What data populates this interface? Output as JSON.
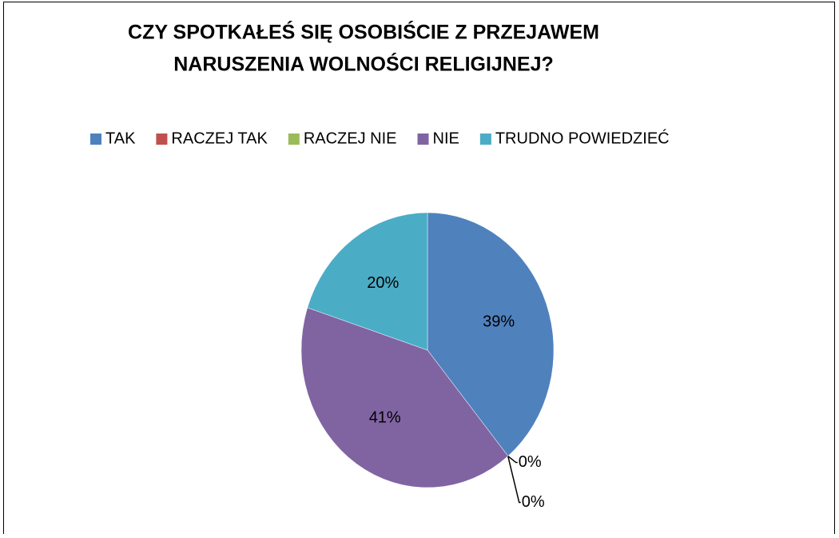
{
  "chart_data": {
    "type": "pie",
    "title": [
      "CZY SPOTKAŁEŚ SIĘ OSOBIŚCIE Z PRZEJAWEM",
      "NARUSZENIA WOLNOŚCI RELIGIJNEJ?"
    ],
    "categories": [
      "TAK",
      "RACZEJ TAK",
      "RACZEJ NIE",
      "NIE",
      "TRUDNO POWIEDZIEĆ"
    ],
    "values": [
      39,
      0,
      0,
      41,
      20
    ],
    "value_labels": [
      "39%",
      "0%",
      "0%",
      "41%",
      "20%"
    ],
    "colors": [
      "#4f81bd",
      "#c0504d",
      "#9bbb59",
      "#8064a2",
      "#4bacc6"
    ],
    "legend": "top"
  }
}
